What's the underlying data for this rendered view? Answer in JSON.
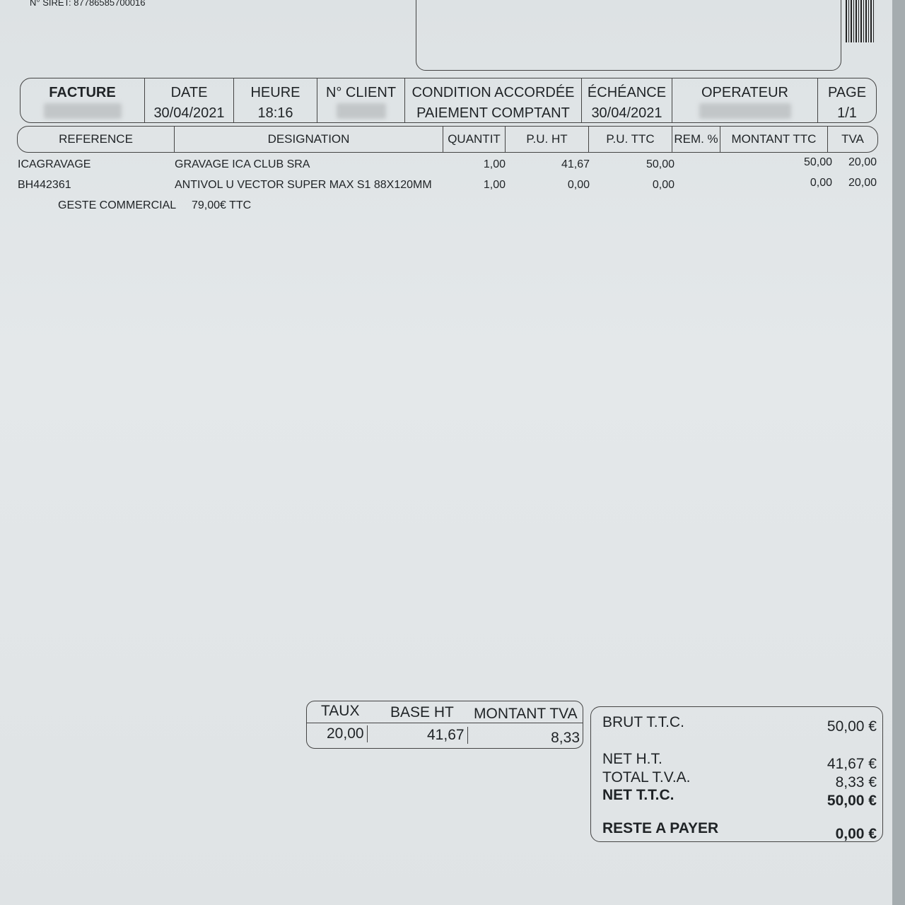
{
  "siret": "N° SIRET: 87786585700016",
  "header": {
    "facture_label": "FACTURE",
    "date_label": "DATE",
    "date": "30/04/2021",
    "heure_label": "HEURE",
    "heure": "18:16",
    "client_label": "N° CLIENT",
    "condition_label": "CONDITION ACCORDÉE",
    "condition": "PAIEMENT COMPTANT",
    "echeance_label": "ÉCHÉANCE",
    "echeance": "30/04/2021",
    "operateur_label": "OPERATEUR",
    "page_label": "PAGE",
    "page": "1/1"
  },
  "columns": [
    "REFERENCE",
    "DESIGNATION",
    "QUANTIT",
    "P.U. HT",
    "P.U. TTC",
    "REM. %",
    "MONTANT TTC",
    "TVA"
  ],
  "lines": [
    {
      "ref": "ICAGRAVAGE",
      "designation": "GRAVAGE ICA CLUB SRA",
      "qty": "1,00",
      "pu_ht": "41,67",
      "pu_ttc": "50,00",
      "montant": "50,00",
      "tva": "20,00"
    },
    {
      "ref": "BH442361",
      "designation": "ANTIVOL U VECTOR SUPER MAX S1 88X120MM",
      "qty": "1,00",
      "pu_ht": "0,00",
      "pu_ttc": "0,00",
      "montant": "0,00",
      "tva": "20,00"
    }
  ],
  "geste": {
    "label": "GESTE COMMERCIAL",
    "value": "79,00€ TTC"
  },
  "tva_table": {
    "taux_label": "TAUX",
    "base_label": "BASE HT",
    "montant_label": "MONTANT TVA",
    "taux": "20,00",
    "base": "41,67",
    "montant": "8,33"
  },
  "totals": {
    "brut_label": "BRUT T.T.C.",
    "brut": "50,00 €",
    "net_ht_label": "NET H.T.",
    "net_ht": "41,67 €",
    "total_tva_label": "TOTAL T.V.A.",
    "total_tva": "8,33 €",
    "net_ttc_label": "NET T.T.C.",
    "net_ttc": "50,00 €",
    "reste_label": "RESTE A PAYER",
    "reste": "0,00 €"
  }
}
